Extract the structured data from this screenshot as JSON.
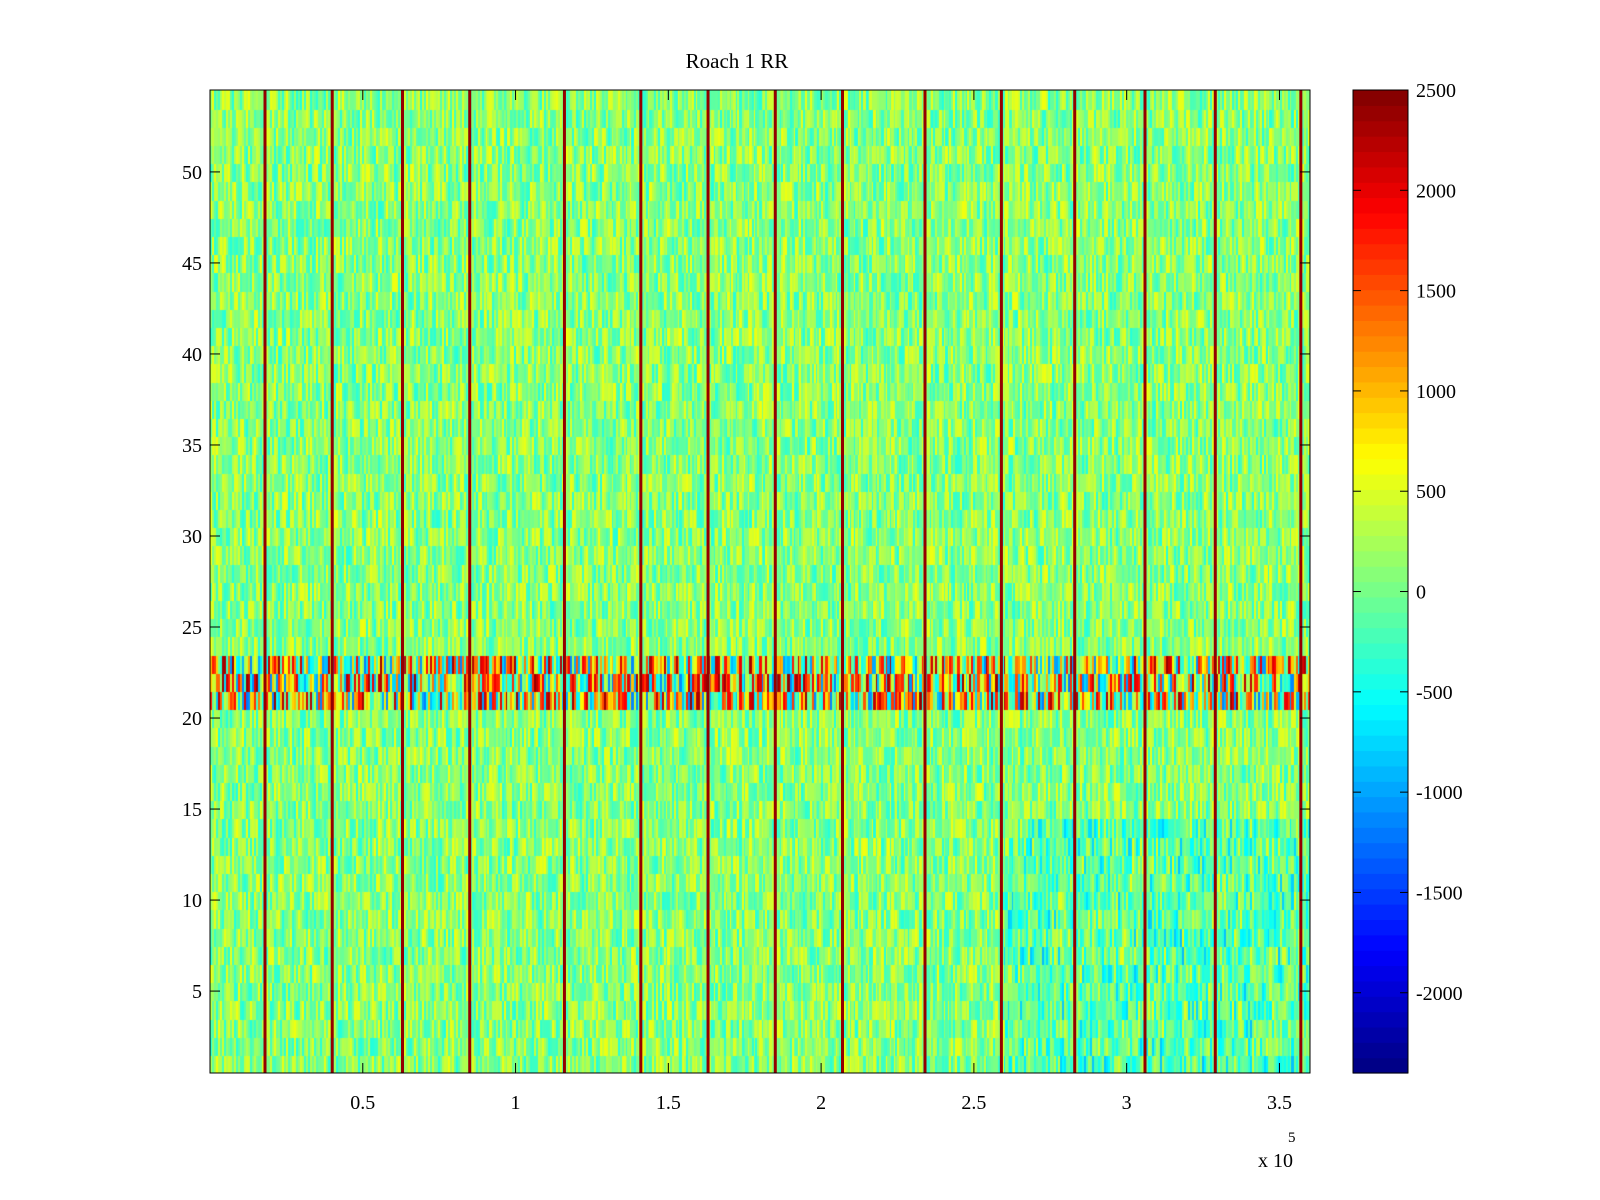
{
  "chart_data": {
    "type": "heatmap",
    "title": "Roach 1 RR",
    "xlabel": "",
    "ylabel": "",
    "x_multiplier_label": "x 10",
    "x_multiplier_exponent": "5",
    "xlim": [
      0,
      360000
    ],
    "ylim": [
      0.5,
      54.5
    ],
    "x_ticks": [
      {
        "value": 50000,
        "label": "0.5"
      },
      {
        "value": 100000,
        "label": "1"
      },
      {
        "value": 150000,
        "label": "1.5"
      },
      {
        "value": 200000,
        "label": "2"
      },
      {
        "value": 250000,
        "label": "2.5"
      },
      {
        "value": 300000,
        "label": "3"
      },
      {
        "value": 350000,
        "label": "3.5"
      }
    ],
    "y_ticks": [
      {
        "value": 5,
        "label": "5"
      },
      {
        "value": 10,
        "label": "10"
      },
      {
        "value": 15,
        "label": "15"
      },
      {
        "value": 20,
        "label": "20"
      },
      {
        "value": 25,
        "label": "25"
      },
      {
        "value": 30,
        "label": "30"
      },
      {
        "value": 35,
        "label": "35"
      },
      {
        "value": 40,
        "label": "40"
      },
      {
        "value": 45,
        "label": "45"
      },
      {
        "value": 50,
        "label": "50"
      }
    ],
    "rows": 54,
    "colormap": "jet",
    "clim": [
      -2400,
      2500
    ],
    "colorbar_ticks": [
      {
        "value": 2500,
        "label": "2500"
      },
      {
        "value": 2000,
        "label": "2000"
      },
      {
        "value": 1500,
        "label": "1500"
      },
      {
        "value": 1000,
        "label": "1000"
      },
      {
        "value": 500,
        "label": "500"
      },
      {
        "value": 0,
        "label": "0"
      },
      {
        "value": -500,
        "label": "-500"
      },
      {
        "value": -1000,
        "label": "-1000"
      },
      {
        "value": -1500,
        "label": "-1500"
      },
      {
        "value": -2000,
        "label": "-2000"
      }
    ],
    "background_value_range": [
      -400,
      600
    ],
    "high_value_columns_x": [
      18000,
      40000,
      63000,
      85000,
      116000,
      141000,
      163000,
      185000,
      207000,
      234000,
      259000,
      283000,
      306000,
      329000,
      357000
    ],
    "high_value_column_value": 2400,
    "anomalous_rows": [
      21,
      22,
      23
    ],
    "anomalous_row_value_range": [
      -1200,
      2400
    ],
    "low_region": {
      "x_from": 260000,
      "x_to": 360000,
      "y_from": 1,
      "y_to": 14,
      "value_shift": -500
    }
  }
}
